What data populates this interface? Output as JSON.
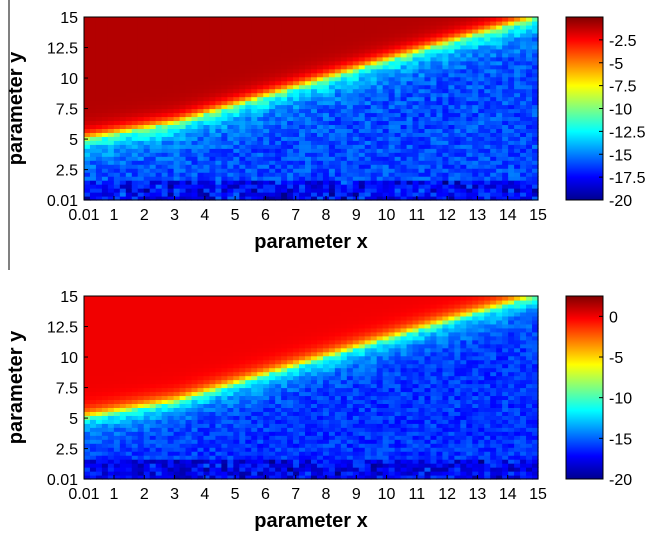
{
  "chart_data": [
    {
      "type": "heatmap",
      "title": "",
      "xlabel": "parameter x",
      "ylabel": "parameter y",
      "xlim": [
        0.01,
        15
      ],
      "ylim": [
        0.01,
        15
      ],
      "x_ticks": [
        "0.01",
        "1",
        "2",
        "3",
        "4",
        "5",
        "6",
        "7",
        "8",
        "9",
        "10",
        "11",
        "12",
        "13",
        "14",
        "15"
      ],
      "y_ticks": [
        "0.01",
        "2.5",
        "5",
        "7.5",
        "10",
        "12.5",
        "15"
      ],
      "colorbar": {
        "range": [
          -20,
          0
        ],
        "ticks": [
          "-2.5",
          "-5",
          "-7.5",
          "-10",
          "-12.5",
          "-15",
          "-17.5",
          "-20"
        ],
        "colormap": "jet"
      },
      "boundary_y_at_x": [
        [
          0.01,
          5.0
        ],
        [
          3,
          6.3
        ],
        [
          6,
          8.5
        ],
        [
          9,
          10.7
        ],
        [
          12,
          12.9
        ],
        [
          15,
          15
        ]
      ],
      "above_boundary_value": -1,
      "below_boundary_value": -15,
      "boundary_value": -9
    },
    {
      "type": "heatmap",
      "title": "",
      "xlabel": "parameter x",
      "ylabel": "parameter y",
      "xlim": [
        0.01,
        15
      ],
      "ylim": [
        0.01,
        15
      ],
      "x_ticks": [
        "0.01",
        "1",
        "2",
        "3",
        "4",
        "5",
        "6",
        "7",
        "8",
        "9",
        "10",
        "11",
        "12",
        "13",
        "14",
        "15"
      ],
      "y_ticks": [
        "0.01",
        "2.5",
        "5",
        "7.5",
        "10",
        "12.5",
        "15"
      ],
      "colorbar": {
        "range": [
          -20,
          2.5
        ],
        "ticks": [
          "0",
          "-5",
          "-10",
          "-15",
          "-20"
        ],
        "colormap": "jet"
      },
      "boundary_y_at_x": [
        [
          0.01,
          5.0
        ],
        [
          3,
          6.3
        ],
        [
          6,
          8.5
        ],
        [
          9,
          10.7
        ],
        [
          12,
          12.9
        ],
        [
          15,
          15
        ]
      ],
      "above_boundary_value": 0,
      "below_boundary_value": -15,
      "boundary_value": -9
    }
  ]
}
